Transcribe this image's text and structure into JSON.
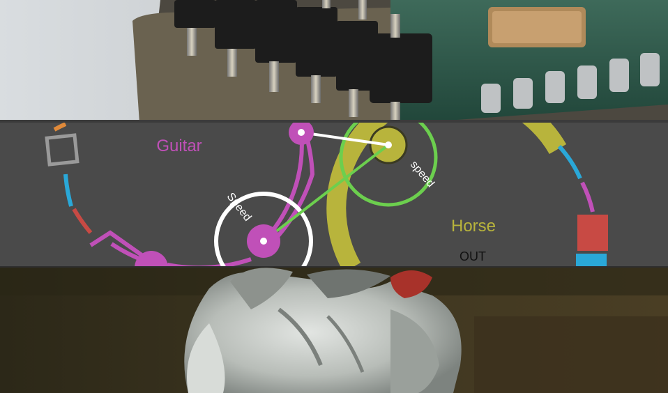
{
  "modules": {
    "guitar": {
      "name": "Guitar",
      "color": "#c050b8"
    },
    "horse": {
      "name": "Horse",
      "color": "#b8b43c",
      "port_label": "OUT"
    }
  },
  "controls": {
    "white_knob_label": "Speed",
    "green_knob_label": "speed"
  },
  "colors": {
    "panel_background": "#4a4a4a",
    "magenta": "#c050b8",
    "olive": "#b8b43c",
    "green": "#6ccf4e",
    "cyan": "#2aa8d8",
    "red": "#c84a44",
    "white": "#ffffff",
    "gray": "#9a9a9a"
  },
  "photos": {
    "top": "circuit-board-pin-headers-photo",
    "bottom": "toy-horse-figurine-photo"
  }
}
